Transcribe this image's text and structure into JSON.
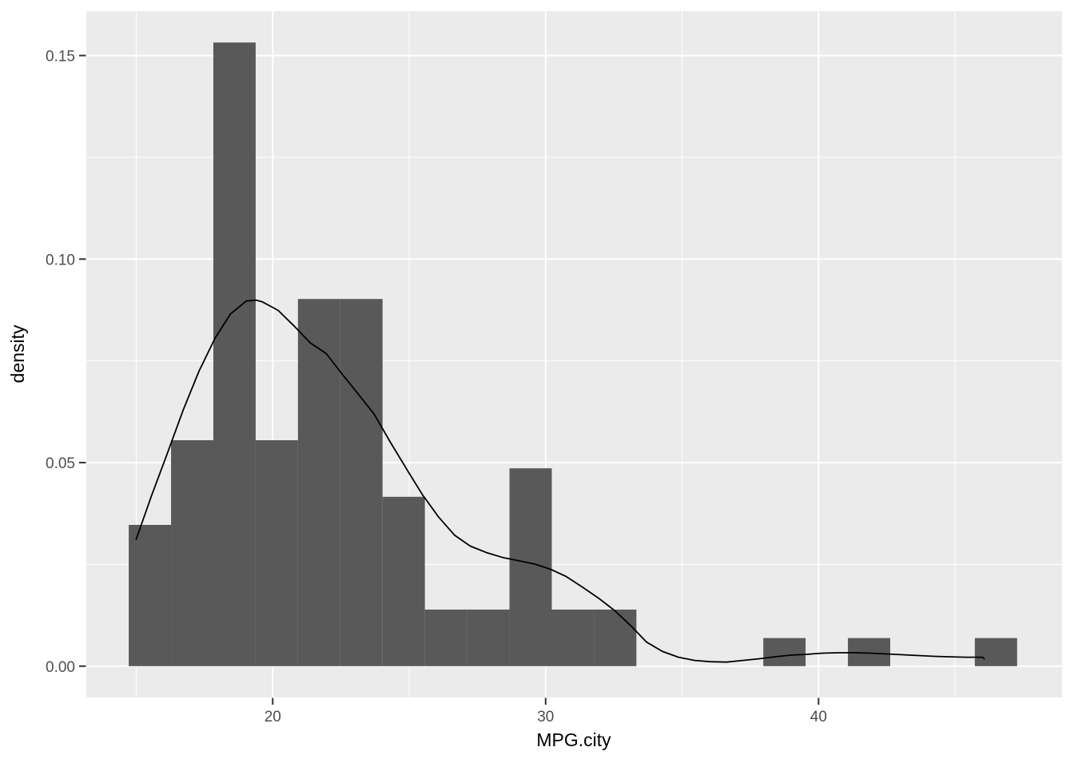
{
  "chart_data": {
    "type": "bar",
    "subtype": "histogram-with-density-overlay",
    "title": "",
    "xlabel": "MPG.city",
    "ylabel": "density",
    "xlim": [
      13.17,
      48.92
    ],
    "ylim": [
      -0.0077,
      0.1609
    ],
    "grid": "on",
    "legend": "none",
    "x_major_ticks": [
      20,
      30,
      40
    ],
    "x_major_tick_labels": [
      "20",
      "30",
      "40"
    ],
    "x_minor_gridlines": [
      15,
      25,
      35,
      45
    ],
    "y_major_ticks": [
      0.0,
      0.05,
      0.1,
      0.15
    ],
    "y_major_tick_labels": [
      "0.00",
      "0.05",
      "0.10",
      "0.15"
    ],
    "y_minor_gridlines": [
      0.025,
      0.075,
      0.125
    ],
    "bin_width": 1.55,
    "bars": [
      {
        "x0": 14.725,
        "x1": 16.275,
        "density": 0.0347
      },
      {
        "x0": 16.275,
        "x1": 17.825,
        "density": 0.0555
      },
      {
        "x0": 17.825,
        "x1": 19.375,
        "density": 0.1532
      },
      {
        "x0": 19.375,
        "x1": 20.925,
        "density": 0.0555
      },
      {
        "x0": 20.925,
        "x1": 22.475,
        "density": 0.0902
      },
      {
        "x0": 22.475,
        "x1": 24.025,
        "density": 0.0902
      },
      {
        "x0": 24.025,
        "x1": 25.575,
        "density": 0.0416
      },
      {
        "x0": 25.575,
        "x1": 27.125,
        "density": 0.0139
      },
      {
        "x0": 27.125,
        "x1": 28.675,
        "density": 0.0139
      },
      {
        "x0": 28.675,
        "x1": 30.225,
        "density": 0.0486
      },
      {
        "x0": 30.225,
        "x1": 31.775,
        "density": 0.0139
      },
      {
        "x0": 31.775,
        "x1": 33.325,
        "density": 0.0139
      },
      {
        "x0": 37.975,
        "x1": 39.525,
        "density": 0.0069
      },
      {
        "x0": 41.075,
        "x1": 42.625,
        "density": 0.0069
      },
      {
        "x0": 45.725,
        "x1": 47.275,
        "density": 0.0069
      }
    ],
    "density_curve": [
      [
        15.0,
        0.0312
      ],
      [
        15.55,
        0.0417
      ],
      [
        16.13,
        0.0521
      ],
      [
        16.72,
        0.0629
      ],
      [
        17.3,
        0.0725
      ],
      [
        17.89,
        0.0806
      ],
      [
        18.45,
        0.0865
      ],
      [
        19.03,
        0.0897
      ],
      [
        19.4,
        0.0899
      ],
      [
        19.62,
        0.0895
      ],
      [
        20.2,
        0.0874
      ],
      [
        20.79,
        0.0835
      ],
      [
        21.38,
        0.0794
      ],
      [
        21.96,
        0.0768
      ],
      [
        22.55,
        0.0717
      ],
      [
        23.14,
        0.0668
      ],
      [
        23.72,
        0.0619
      ],
      [
        24.31,
        0.055
      ],
      [
        24.9,
        0.0485
      ],
      [
        25.48,
        0.0422
      ],
      [
        26.07,
        0.0367
      ],
      [
        26.66,
        0.0322
      ],
      [
        27.24,
        0.0295
      ],
      [
        27.83,
        0.0279
      ],
      [
        28.42,
        0.0267
      ],
      [
        29.0,
        0.0259
      ],
      [
        29.59,
        0.0251
      ],
      [
        30.18,
        0.0238
      ],
      [
        30.76,
        0.022
      ],
      [
        31.35,
        0.0194
      ],
      [
        31.94,
        0.0167
      ],
      [
        32.52,
        0.0137
      ],
      [
        33.11,
        0.01
      ],
      [
        33.7,
        0.0059
      ],
      [
        34.28,
        0.0036
      ],
      [
        34.87,
        0.0022
      ],
      [
        35.46,
        0.0014
      ],
      [
        36.04,
        0.0011
      ],
      [
        36.63,
        0.001
      ],
      [
        37.22,
        0.0014
      ],
      [
        37.8,
        0.0018
      ],
      [
        38.39,
        0.0023
      ],
      [
        38.97,
        0.0027
      ],
      [
        39.56,
        0.0029
      ],
      [
        40.15,
        0.0032
      ],
      [
        40.73,
        0.0033
      ],
      [
        41.32,
        0.0033
      ],
      [
        41.91,
        0.0032
      ],
      [
        42.49,
        0.003
      ],
      [
        43.08,
        0.0028
      ],
      [
        43.67,
        0.0026
      ],
      [
        44.25,
        0.0024
      ],
      [
        44.84,
        0.0023
      ],
      [
        45.43,
        0.0022
      ],
      [
        46.01,
        0.0022
      ],
      [
        46.07,
        0.0018
      ]
    ],
    "colors": {
      "panel_background": "#EBEBEB",
      "figure_background": "#FFFFFF",
      "bar_fill": "#595959",
      "gridline": "#FFFFFF",
      "density_line": "#000000",
      "tick_mark": "#333333",
      "tick_label": "#4D4D4D",
      "axis_title": "#000000"
    }
  }
}
